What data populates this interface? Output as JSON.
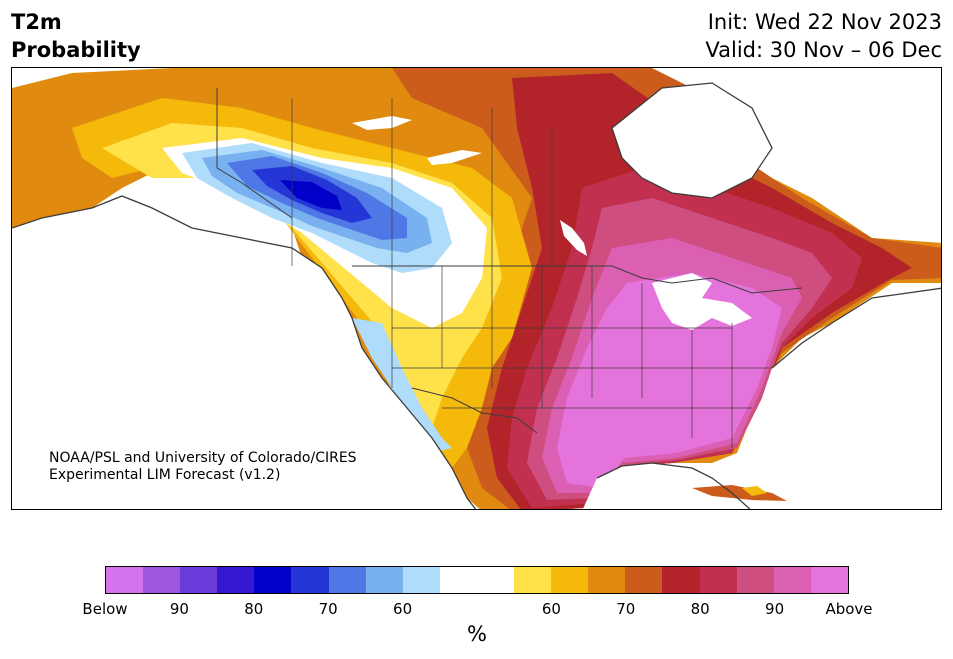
{
  "header": {
    "title_line1": "T2m",
    "title_line2": "Probability",
    "init_line": "Init: Wed 22 Nov 2023",
    "valid_line": "Valid: 30 Nov – 06 Dec"
  },
  "credit": {
    "line1": "NOAA/PSL and University of Colorado/CIRES",
    "line2": "Experimental LIM Forecast (v1.2)"
  },
  "colorbar": {
    "colors": [
      "#d473ec",
      "#9e55e0",
      "#6a3bd9",
      "#3618d2",
      "#0000c8",
      "#2437d6",
      "#4f78e6",
      "#78b0f0",
      "#aedcfa",
      "#ffffff",
      "#ffffff",
      "#ffe14a",
      "#f4b90a",
      "#e08a10",
      "#cc5c1c",
      "#b3242a",
      "#c23050",
      "#cf4e80",
      "#db60b4",
      "#e573dc"
    ],
    "tick_labels": [
      "Below",
      "90",
      "80",
      "70",
      "60",
      "60",
      "70",
      "80",
      "90",
      "Above"
    ],
    "unit": "%"
  },
  "map": {
    "colors": {
      "ocean": "#ffffff",
      "coast": "#3c3c3c",
      "above_60": "#ffe14a",
      "above_65": "#f4b90a",
      "above_70": "#e08a10",
      "above_75": "#cc5c1c",
      "above_80": "#b3242a",
      "above_85": "#c23050",
      "above_90": "#cf4e80",
      "above_95": "#db60b4",
      "above_max": "#e573dc",
      "below_60": "#aedcfa",
      "below_65": "#78b0f0",
      "below_70": "#4f78e6",
      "below_75": "#2437d6",
      "below_80": "#0000c8"
    }
  }
}
